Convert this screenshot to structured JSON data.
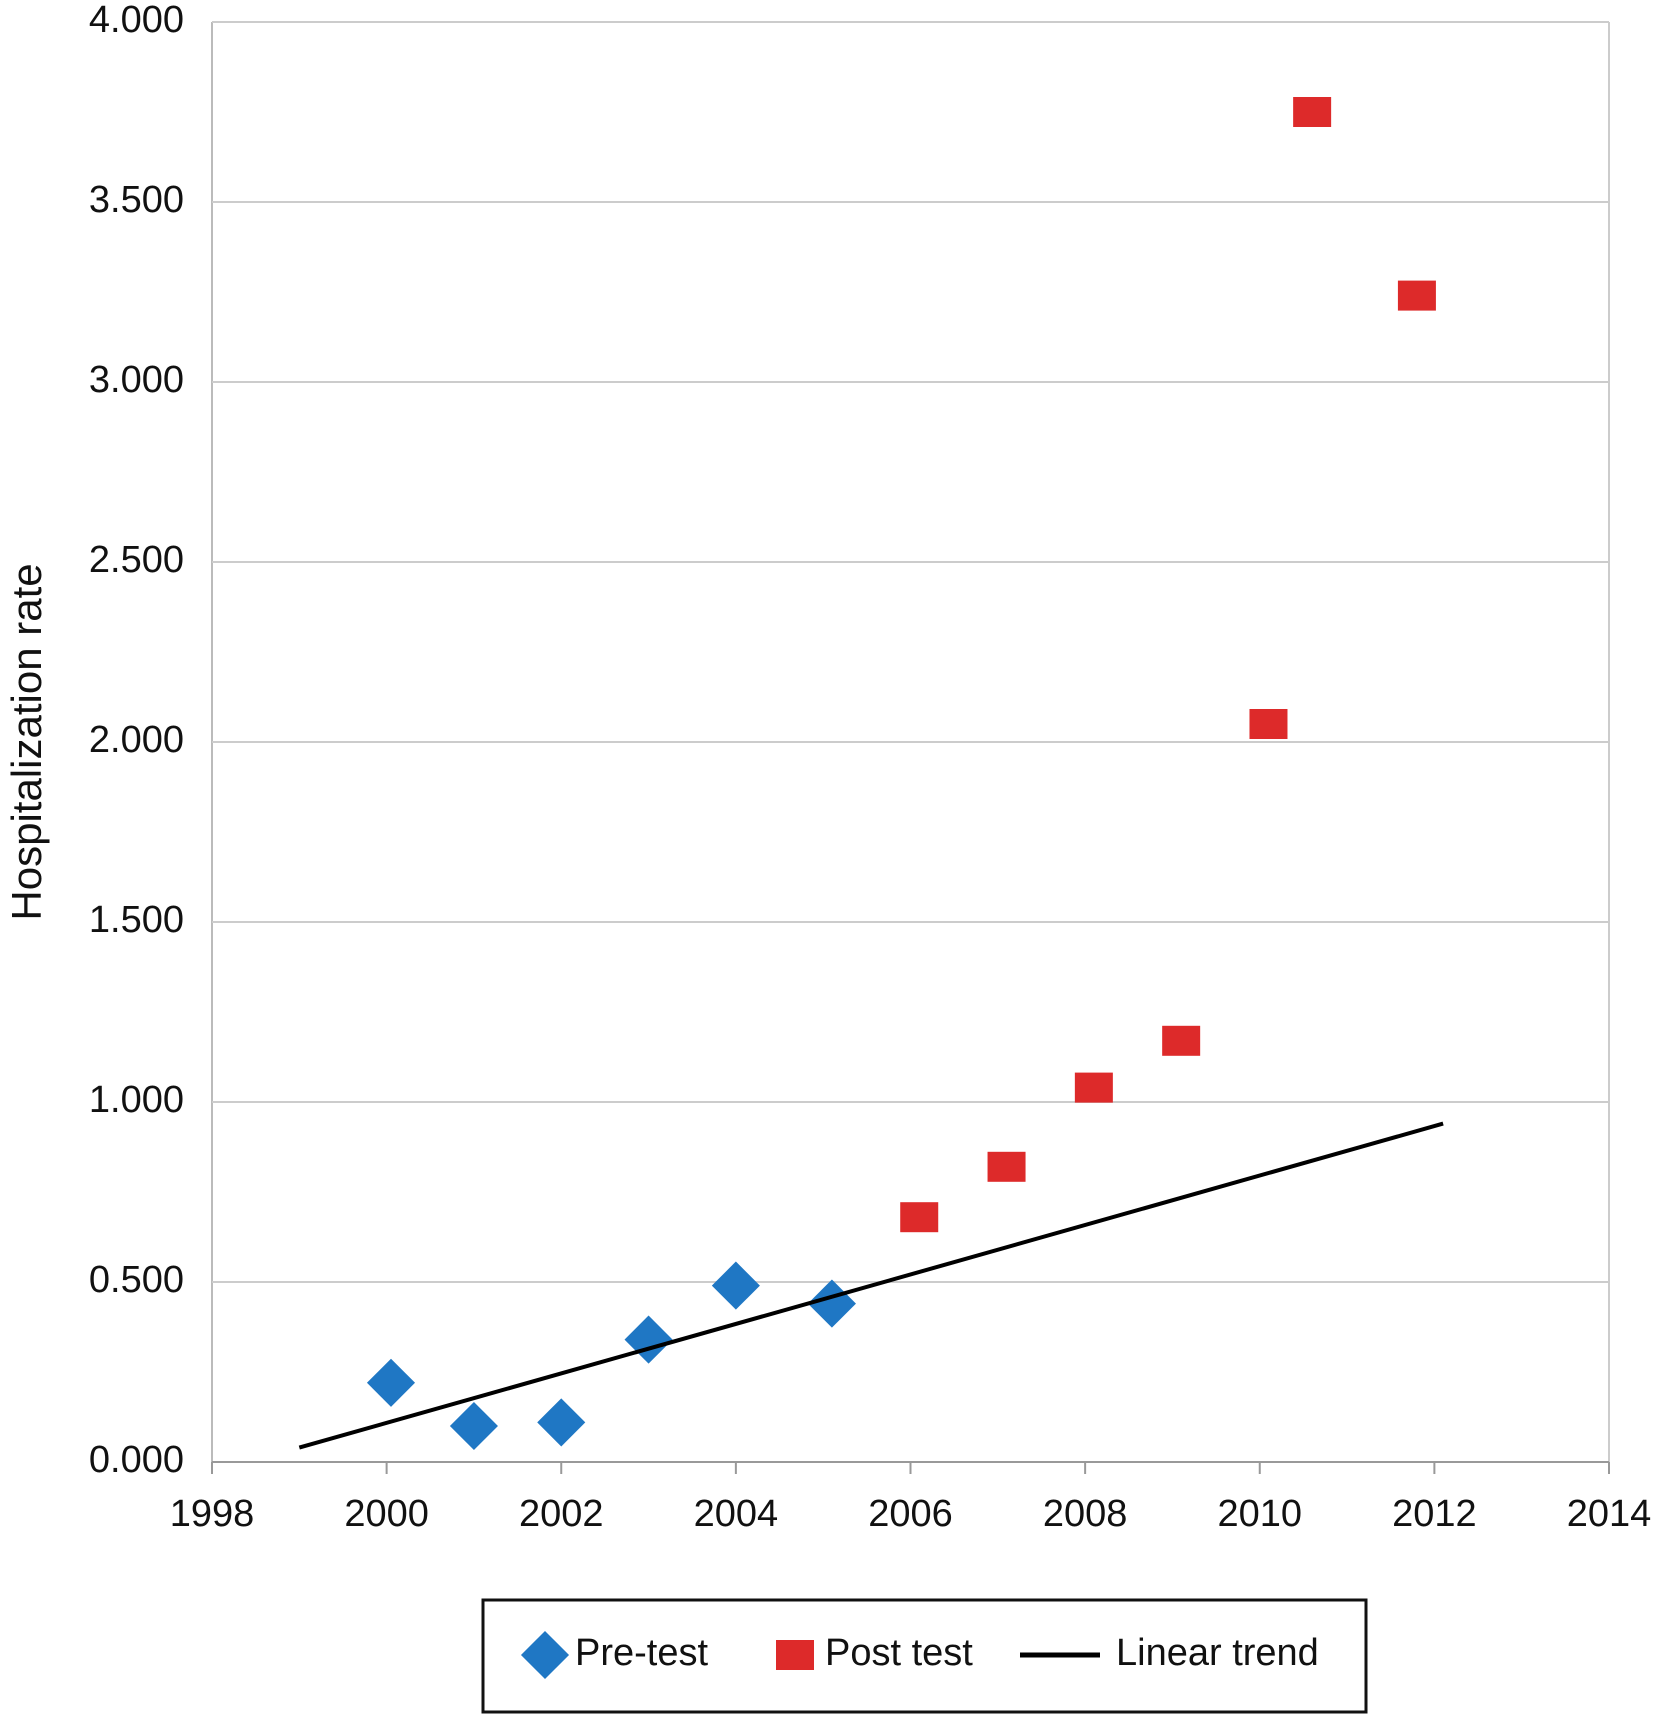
{
  "chart_data": {
    "type": "scatter",
    "y_label": "Hospitalization rate",
    "xlim": [
      1998,
      2014
    ],
    "xticks": [
      1998,
      2000,
      2002,
      2004,
      2006,
      2008,
      2010,
      2012,
      2014
    ],
    "ylim": [
      0,
      4
    ],
    "yticks": [
      {
        "value": 0,
        "label": "0.000"
      },
      {
        "value": 0.5,
        "label": "0.500"
      },
      {
        "value": 1,
        "label": "1.000"
      },
      {
        "value": 1.5,
        "label": "1.500"
      },
      {
        "value": 2,
        "label": "2.000"
      },
      {
        "value": 2.5,
        "label": "2.500"
      },
      {
        "value": 3,
        "label": "3.000"
      },
      {
        "value": 3.5,
        "label": "3.500"
      },
      {
        "value": 4,
        "label": "4.000"
      }
    ],
    "grid": true,
    "legend": "bottom",
    "series": [
      {
        "name": "Pre-test",
        "color": "#1f77c4",
        "marker": "diamond",
        "x": [
          2000.05,
          2001,
          2002,
          2003,
          2004,
          2005.1
        ],
        "values": [
          0.22,
          0.1,
          0.11,
          0.34,
          0.49,
          0.44
        ]
      },
      {
        "name": "Post test",
        "color": "#dd2a2a",
        "marker": "square",
        "x": [
          2006.1,
          2007.1,
          2008.1,
          2009.1,
          2010.1,
          2010.6,
          2011.8
        ],
        "values": [
          0.68,
          0.82,
          1.04,
          1.17,
          2.05,
          3.75,
          3.24
        ]
      },
      {
        "name": "Linear trend",
        "color": "#000000",
        "marker": "line",
        "x": [
          1999,
          2012.1
        ],
        "values": [
          0.04,
          0.94
        ]
      }
    ]
  }
}
